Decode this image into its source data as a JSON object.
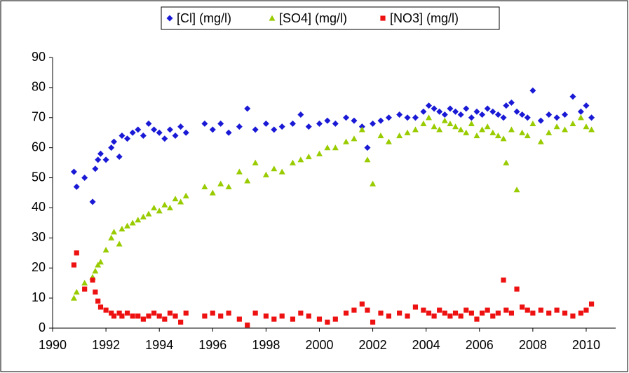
{
  "chart_data": {
    "type": "scatter",
    "x": [
      1990.8,
      1990.9,
      1991.2,
      1991.5,
      1991.6,
      1991.7,
      1991.8,
      1992.0,
      1992.2,
      1992.3,
      1992.5,
      1992.6,
      1992.8,
      1993.0,
      1993.2,
      1993.4,
      1993.6,
      1993.8,
      1994.0,
      1994.2,
      1994.4,
      1994.6,
      1994.8,
      1995.0,
      1995.7,
      1996.0,
      1996.3,
      1996.6,
      1997.0,
      1997.3,
      1997.6,
      1998.0,
      1998.3,
      1998.6,
      1999.0,
      1999.3,
      1999.6,
      2000.0,
      2000.3,
      2000.6,
      2001.0,
      2001.3,
      2001.6,
      2001.8,
      2002.0,
      2002.3,
      2002.6,
      2003.0,
      2003.3,
      2003.6,
      2003.9,
      2004.1,
      2004.3,
      2004.5,
      2004.7,
      2004.9,
      2005.1,
      2005.3,
      2005.5,
      2005.7,
      2005.9,
      2006.1,
      2006.3,
      2006.5,
      2006.7,
      2006.9,
      2007.0,
      2007.2,
      2007.4,
      2007.6,
      2007.8,
      2008.0,
      2008.3,
      2008.6,
      2008.9,
      2009.2,
      2009.5,
      2009.8,
      2010.0,
      2010.2
    ],
    "series": [
      {
        "name": "[Cl] (mg/l)",
        "color": "#1a1ad6",
        "marker": "diamond",
        "values": [
          52,
          47,
          50,
          42,
          53,
          56,
          58,
          56,
          60,
          62,
          57,
          64,
          63,
          65,
          66,
          64,
          68,
          66,
          65,
          63,
          66,
          64,
          67,
          65,
          68,
          66,
          68,
          65,
          67,
          73,
          66,
          68,
          66,
          67,
          68,
          71,
          67,
          68,
          69,
          68,
          70,
          69,
          67,
          60,
          68,
          69,
          70,
          71,
          70,
          70,
          72,
          74,
          73,
          72,
          71,
          73,
          72,
          71,
          73,
          70,
          72,
          71,
          73,
          72,
          71,
          70,
          74,
          75,
          72,
          71,
          70,
          79,
          69,
          71,
          70,
          71,
          77,
          72,
          74,
          70
        ]
      },
      {
        "name": "[SO4] (mg/l)",
        "color": "#99cc00",
        "marker": "triangle",
        "values": [
          10,
          12,
          15,
          17,
          19,
          21,
          22,
          26,
          30,
          32,
          28,
          33,
          34,
          35,
          36,
          37,
          38,
          40,
          39,
          41,
          40,
          43,
          42,
          44,
          47,
          45,
          48,
          47,
          52,
          49,
          55,
          51,
          53,
          52,
          55,
          56,
          57,
          58,
          60,
          60,
          62,
          63,
          66,
          56,
          48,
          64,
          62,
          64,
          65,
          66,
          68,
          70,
          67,
          66,
          69,
          68,
          67,
          66,
          65,
          68,
          64,
          66,
          67,
          65,
          64,
          63,
          55,
          66,
          46,
          65,
          64,
          68,
          62,
          65,
          67,
          66,
          68,
          70,
          67,
          66
        ]
      },
      {
        "name": "[NO3] (mg/l)",
        "color": "#ee1111",
        "marker": "square",
        "values": [
          21,
          25,
          13,
          16,
          12,
          9,
          7,
          6,
          5,
          4,
          5,
          4,
          5,
          4,
          4,
          3,
          4,
          5,
          4,
          3,
          5,
          4,
          2,
          5,
          4,
          5,
          4,
          5,
          3,
          1,
          5,
          4,
          3,
          4,
          3,
          5,
          4,
          3,
          2,
          3,
          5,
          6,
          8,
          6,
          2,
          5,
          4,
          5,
          4,
          7,
          6,
          5,
          4,
          6,
          5,
          4,
          5,
          4,
          6,
          5,
          3,
          5,
          6,
          4,
          5,
          16,
          6,
          5,
          13,
          7,
          6,
          5,
          6,
          5,
          6,
          5,
          4,
          5,
          6,
          8
        ]
      }
    ],
    "xlim": [
      1990,
      2011
    ],
    "xticks": [
      1990,
      1992,
      1994,
      1996,
      1998,
      2000,
      2002,
      2004,
      2006,
      2008,
      2010
    ],
    "ylim": [
      0,
      90
    ],
    "yticks": [
      0,
      10,
      20,
      30,
      40,
      50,
      60,
      70,
      80,
      90
    ],
    "grid": false,
    "legend": "top"
  }
}
